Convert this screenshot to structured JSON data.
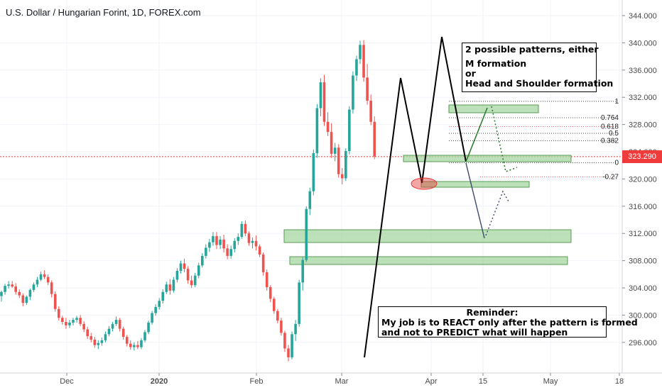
{
  "header": {
    "title": "U.S. Dollar / Hungarian Forint, 1D, FOREX.com"
  },
  "price_axis": {
    "ticks": [
      "344.000",
      "340.000",
      "336.000",
      "332.000",
      "328.000",
      "324.000",
      "320.000",
      "316.000",
      "312.000",
      "308.000",
      "304.000",
      "300.000",
      "296.000"
    ],
    "last_price": "323.290",
    "last_price_color": "#ef3b3b"
  },
  "time_axis": {
    "ticks": [
      "Dec",
      "2020",
      "Feb",
      "Mar",
      "Apr",
      "15",
      "May",
      "18"
    ]
  },
  "annotations": {
    "patterns_box": {
      "line1": "2 possible patterns, either",
      "line2": "M formation",
      "line3": "or",
      "line4": "Head and Shoulder formation"
    },
    "reminder_box": {
      "line1": "Reminder:",
      "line2": "My job is to REACT only after the pattern is formed",
      "line3": "and not to PREDICT what will happen"
    }
  },
  "fib_levels": [
    {
      "label": "1",
      "value": 331.4,
      "color": "#222222"
    },
    {
      "label": "0.764",
      "value": 329.0,
      "color": "#222222"
    },
    {
      "label": "0.618",
      "value": 327.7,
      "color": "#ef3b3b"
    },
    {
      "label": "0.5",
      "value": 326.7,
      "color": "#222222"
    },
    {
      "label": "0.382",
      "value": 325.6,
      "color": "#222222"
    },
    {
      "label": "0",
      "value": 322.4,
      "color": "#222222"
    },
    {
      "label": "-0.27",
      "value": 320.3,
      "color": "#ef3b3b"
    }
  ],
  "colors": {
    "up_candle": "#26a69a",
    "down_candle": "#ef5350",
    "zone_fill": "#a5d6a0",
    "zone_border": "#5a9a55",
    "pattern_line": "#000000",
    "projection_green": "#2e7d32",
    "projection_blue": "#3a4a6b"
  },
  "chart_data": {
    "type": "candlestick",
    "title": "U.S. Dollar / Hungarian Forint, 1D, FOREX.com",
    "ylim": [
      292.5,
      346.5
    ],
    "x_tick_labels": [
      "Dec",
      "2020",
      "Feb",
      "Mar",
      "Apr",
      "15",
      "May",
      "18"
    ],
    "note": "Approximate daily candles (open, high, low, close) read off the chart.",
    "candles": [
      [
        302.8,
        303.6,
        302.0,
        303.4
      ],
      [
        303.4,
        304.6,
        303.0,
        304.3
      ],
      [
        304.3,
        305.0,
        303.9,
        304.5
      ],
      [
        304.5,
        305.0,
        304.0,
        304.2
      ],
      [
        304.2,
        304.7,
        303.0,
        303.4
      ],
      [
        303.4,
        303.8,
        302.5,
        302.9
      ],
      [
        302.9,
        303.2,
        301.3,
        301.8
      ],
      [
        301.8,
        302.9,
        301.5,
        302.7
      ],
      [
        302.7,
        303.9,
        302.2,
        303.7
      ],
      [
        303.7,
        304.8,
        303.4,
        304.5
      ],
      [
        304.5,
        305.6,
        304.1,
        305.2
      ],
      [
        305.2,
        306.4,
        305.0,
        306.0
      ],
      [
        306.0,
        306.6,
        305.3,
        305.6
      ],
      [
        305.6,
        306.0,
        304.4,
        304.8
      ],
      [
        304.8,
        305.1,
        302.6,
        303.1
      ],
      [
        303.1,
        303.5,
        300.5,
        300.9
      ],
      [
        300.9,
        301.3,
        299.2,
        299.6
      ],
      [
        299.6,
        299.9,
        298.6,
        299.0
      ],
      [
        299.0,
        299.6,
        298.0,
        298.5
      ],
      [
        298.5,
        299.3,
        298.1,
        298.9
      ],
      [
        298.9,
        299.6,
        298.5,
        299.3
      ],
      [
        299.3,
        299.9,
        298.9,
        299.6
      ],
      [
        299.6,
        300.0,
        298.4,
        298.7
      ],
      [
        298.7,
        299.1,
        297.5,
        297.9
      ],
      [
        297.9,
        298.3,
        296.5,
        296.9
      ],
      [
        296.9,
        297.4,
        296.0,
        296.4
      ],
      [
        296.4,
        296.8,
        295.2,
        295.6
      ],
      [
        295.6,
        296.3,
        295.0,
        295.9
      ],
      [
        295.9,
        296.7,
        295.5,
        296.3
      ],
      [
        296.3,
        297.6,
        296.0,
        297.2
      ],
      [
        297.2,
        298.4,
        296.9,
        298.0
      ],
      [
        298.0,
        299.0,
        297.6,
        298.7
      ],
      [
        298.7,
        299.8,
        298.4,
        299.3
      ],
      [
        299.3,
        299.6,
        297.6,
        298.0
      ],
      [
        298.0,
        298.3,
        296.4,
        296.8
      ],
      [
        296.8,
        297.1,
        295.4,
        295.8
      ],
      [
        295.8,
        296.3,
        294.9,
        295.3
      ],
      [
        295.3,
        296.0,
        294.8,
        295.6
      ],
      [
        295.6,
        296.2,
        295.0,
        295.3
      ],
      [
        295.3,
        296.6,
        295.0,
        296.3
      ],
      [
        296.3,
        297.8,
        296.0,
        297.5
      ],
      [
        297.5,
        299.2,
        297.2,
        298.9
      ],
      [
        298.9,
        300.6,
        298.6,
        300.3
      ],
      [
        300.3,
        301.6,
        299.9,
        301.2
      ],
      [
        301.2,
        302.5,
        300.8,
        302.1
      ],
      [
        302.1,
        303.8,
        301.7,
        303.4
      ],
      [
        303.4,
        304.9,
        303.1,
        304.5
      ],
      [
        304.5,
        305.3,
        303.0,
        303.6
      ],
      [
        303.6,
        305.6,
        303.3,
        305.2
      ],
      [
        305.2,
        306.9,
        304.8,
        306.5
      ],
      [
        306.5,
        308.0,
        306.1,
        307.6
      ],
      [
        307.6,
        308.3,
        306.3,
        306.8
      ],
      [
        306.8,
        307.2,
        304.6,
        305.1
      ],
      [
        305.1,
        305.8,
        304.0,
        304.4
      ],
      [
        304.4,
        306.2,
        304.1,
        305.8
      ],
      [
        305.8,
        307.7,
        305.4,
        307.3
      ],
      [
        307.3,
        309.1,
        307.0,
        308.7
      ],
      [
        308.7,
        310.4,
        308.3,
        309.9
      ],
      [
        309.9,
        311.2,
        309.3,
        310.7
      ],
      [
        310.7,
        312.2,
        310.2,
        311.6
      ],
      [
        311.6,
        312.2,
        309.7,
        310.3
      ],
      [
        310.3,
        311.6,
        309.7,
        311.1
      ],
      [
        311.1,
        311.8,
        309.2,
        309.8
      ],
      [
        309.8,
        310.4,
        308.2,
        308.7
      ],
      [
        308.7,
        310.2,
        308.3,
        309.7
      ],
      [
        309.7,
        311.3,
        309.2,
        310.9
      ],
      [
        310.9,
        312.0,
        310.3,
        311.5
      ],
      [
        311.5,
        313.8,
        311.2,
        313.4
      ],
      [
        313.4,
        313.9,
        311.6,
        312.0
      ],
      [
        312.0,
        312.3,
        310.2,
        310.6
      ],
      [
        310.6,
        311.4,
        309.8,
        310.9
      ],
      [
        310.9,
        311.7,
        309.5,
        310.1
      ],
      [
        310.1,
        310.4,
        308.5,
        308.9
      ],
      [
        308.9,
        309.2,
        305.8,
        306.3
      ],
      [
        306.3,
        306.7,
        303.6,
        304.1
      ],
      [
        304.1,
        304.4,
        301.9,
        302.4
      ],
      [
        302.4,
        302.7,
        300.2,
        300.6
      ],
      [
        300.6,
        300.9,
        298.8,
        299.2
      ],
      [
        299.2,
        299.6,
        297.0,
        297.4
      ],
      [
        297.4,
        297.7,
        294.6,
        295.1
      ],
      [
        295.1,
        295.6,
        293.2,
        293.8
      ],
      [
        293.8,
        297.6,
        293.5,
        297.2
      ],
      [
        297.2,
        299.3,
        296.2,
        298.7
      ],
      [
        298.7,
        305.2,
        298.3,
        304.8
      ],
      [
        304.8,
        308.5,
        303.6,
        308.1
      ],
      [
        308.1,
        316.0,
        307.8,
        315.6
      ],
      [
        315.6,
        318.7,
        314.7,
        318.2
      ],
      [
        318.2,
        324.3,
        317.6,
        323.8
      ],
      [
        323.8,
        331.0,
        323.1,
        330.4
      ],
      [
        330.4,
        334.8,
        329.2,
        334.2
      ],
      [
        334.2,
        335.3,
        327.8,
        328.4
      ],
      [
        328.4,
        329.8,
        326.3,
        326.9
      ],
      [
        326.9,
        328.2,
        323.1,
        323.7
      ],
      [
        323.7,
        325.3,
        322.6,
        324.6
      ],
      [
        324.6,
        325.1,
        320.2,
        320.7
      ],
      [
        320.7,
        321.6,
        319.2,
        320.1
      ],
      [
        320.1,
        324.5,
        319.7,
        324.1
      ],
      [
        324.1,
        330.7,
        323.6,
        330.2
      ],
      [
        330.2,
        335.8,
        329.6,
        335.2
      ],
      [
        335.2,
        338.1,
        334.4,
        337.6
      ],
      [
        337.6,
        340.3,
        336.9,
        339.7
      ],
      [
        339.7,
        340.4,
        334.3,
        334.9
      ],
      [
        334.9,
        336.9,
        330.9,
        331.5
      ],
      [
        331.5,
        332.4,
        327.9,
        328.4
      ],
      [
        328.4,
        329.2,
        322.9,
        323.3
      ]
    ]
  }
}
